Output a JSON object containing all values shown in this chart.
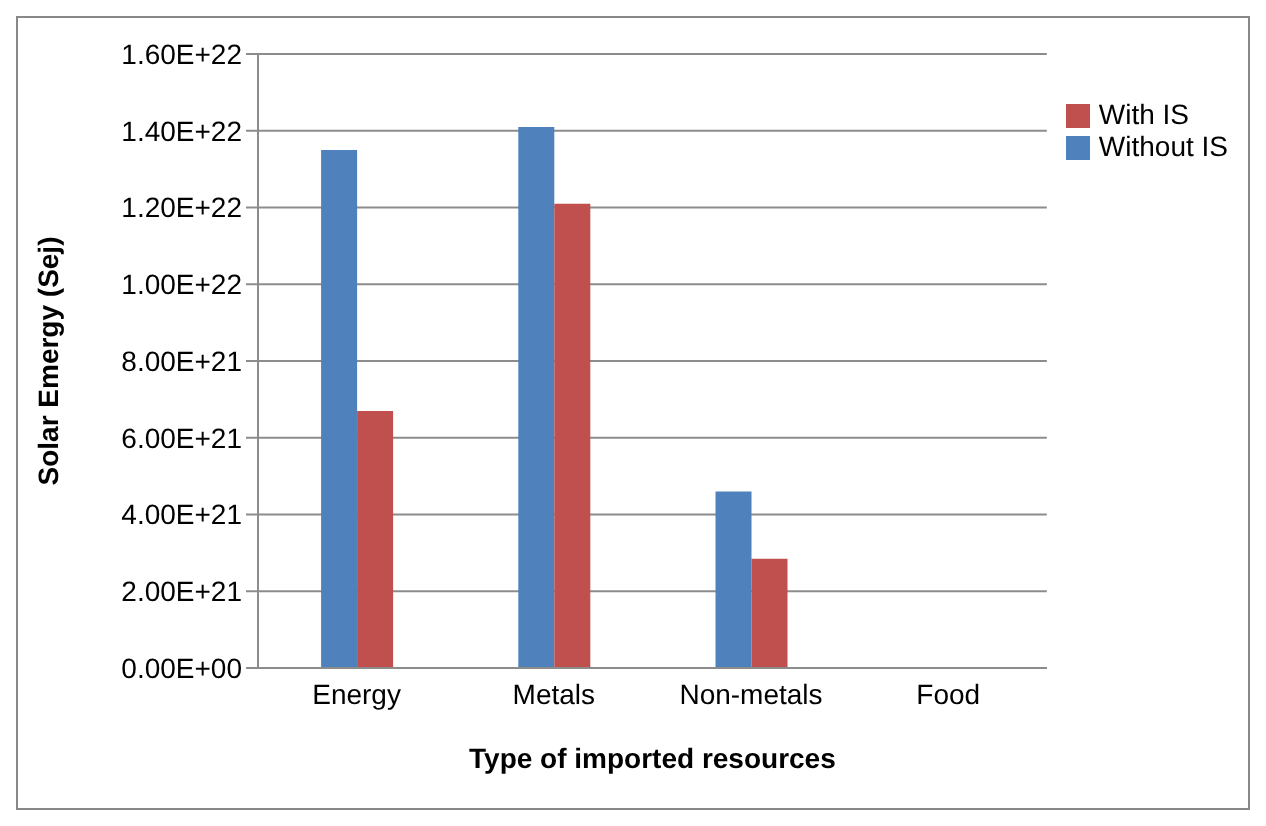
{
  "chart_data": {
    "type": "bar",
    "xlabel": "Type of imported resources",
    "ylabel": "Solar Emergy  (Sej)",
    "categories": [
      "Energy",
      "Metals",
      "Non-metals",
      "Food"
    ],
    "series": [
      {
        "name": "Without IS",
        "color": "#4f81bd",
        "values": [
          1.35e+22,
          1.41e+22,
          4.6e+21,
          0
        ]
      },
      {
        "name": "With IS",
        "color": "#c0504d",
        "values": [
          6.7e+21,
          1.21e+22,
          2.85e+21,
          0
        ]
      }
    ],
    "ylim": [
      0,
      1.6e+22
    ],
    "yticks": [
      {
        "value": 0,
        "label": "0.00E+00"
      },
      {
        "value": 2e+21,
        "label": "2.00E+21"
      },
      {
        "value": 4e+21,
        "label": "4.00E+21"
      },
      {
        "value": 6e+21,
        "label": "6.00E+21"
      },
      {
        "value": 8e+21,
        "label": "8.00E+21"
      },
      {
        "value": 1e+22,
        "label": "1.00E+22"
      },
      {
        "value": 1.2e+22,
        "label": "1.20E+22"
      },
      {
        "value": 1.4e+22,
        "label": "1.40E+22"
      },
      {
        "value": 1.6e+22,
        "label": "1.60E+22"
      }
    ],
    "grid": "y",
    "legend": "right"
  }
}
